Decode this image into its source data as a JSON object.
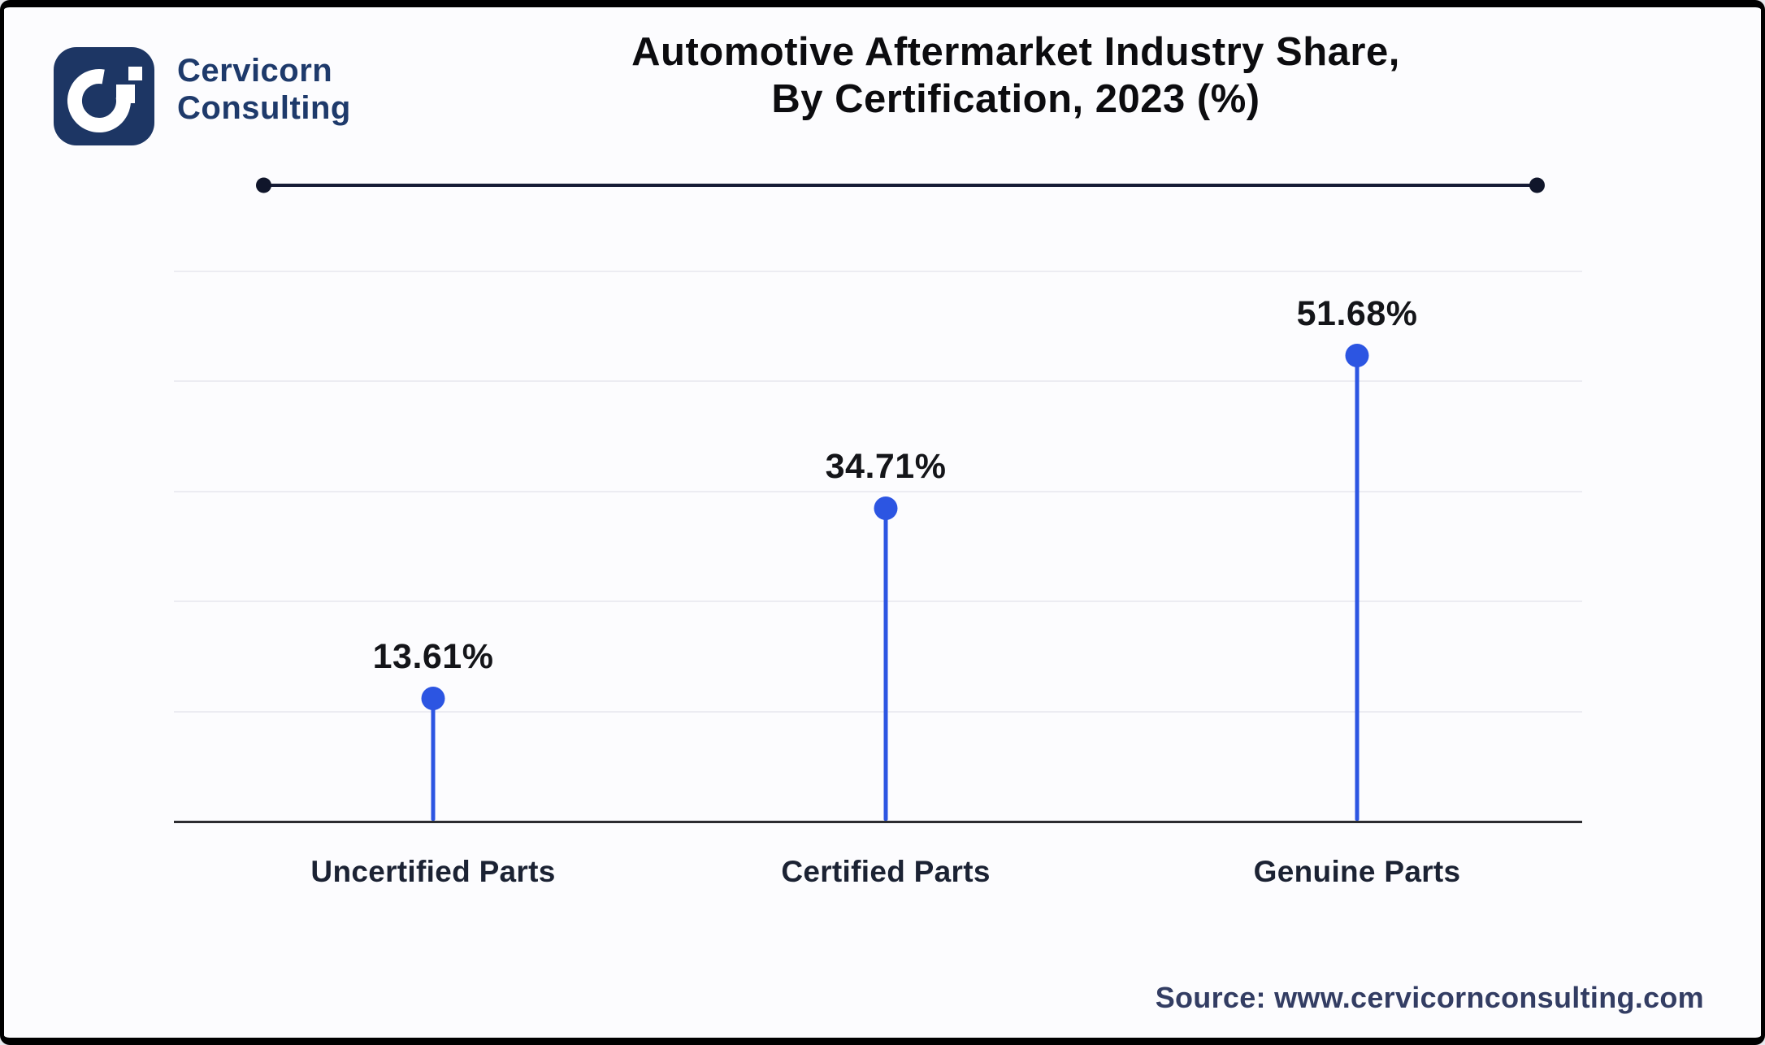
{
  "brand": {
    "line1": "Cervicorn",
    "line2": "Consulting"
  },
  "title": {
    "line1": "Automotive Aftermarket Industry Share,",
    "line2": "By Certification, 2023 (%)"
  },
  "chart_data": {
    "type": "lollipop",
    "title": "Automotive Aftermarket Industry Share, By Certification, 2023 (%)",
    "categories": [
      "Uncertified Parts",
      "Certified Parts",
      "Genuine Parts"
    ],
    "values": [
      13.61,
      34.71,
      51.68
    ],
    "value_labels": [
      "13.61%",
      "34.71%",
      "51.68%"
    ],
    "unit": "%",
    "ylim": [
      0,
      61
    ],
    "grid": true,
    "legend_position": "none",
    "accent_color": "#2c55e2"
  },
  "footer": {
    "source": "Source: www.cervicornconsulting.com"
  },
  "colors": {
    "accent": "#2c55e2",
    "logo_navy": "#1d3664",
    "divider": "#161c36",
    "label_ink": "#141519",
    "source_navy": "#333d63"
  }
}
